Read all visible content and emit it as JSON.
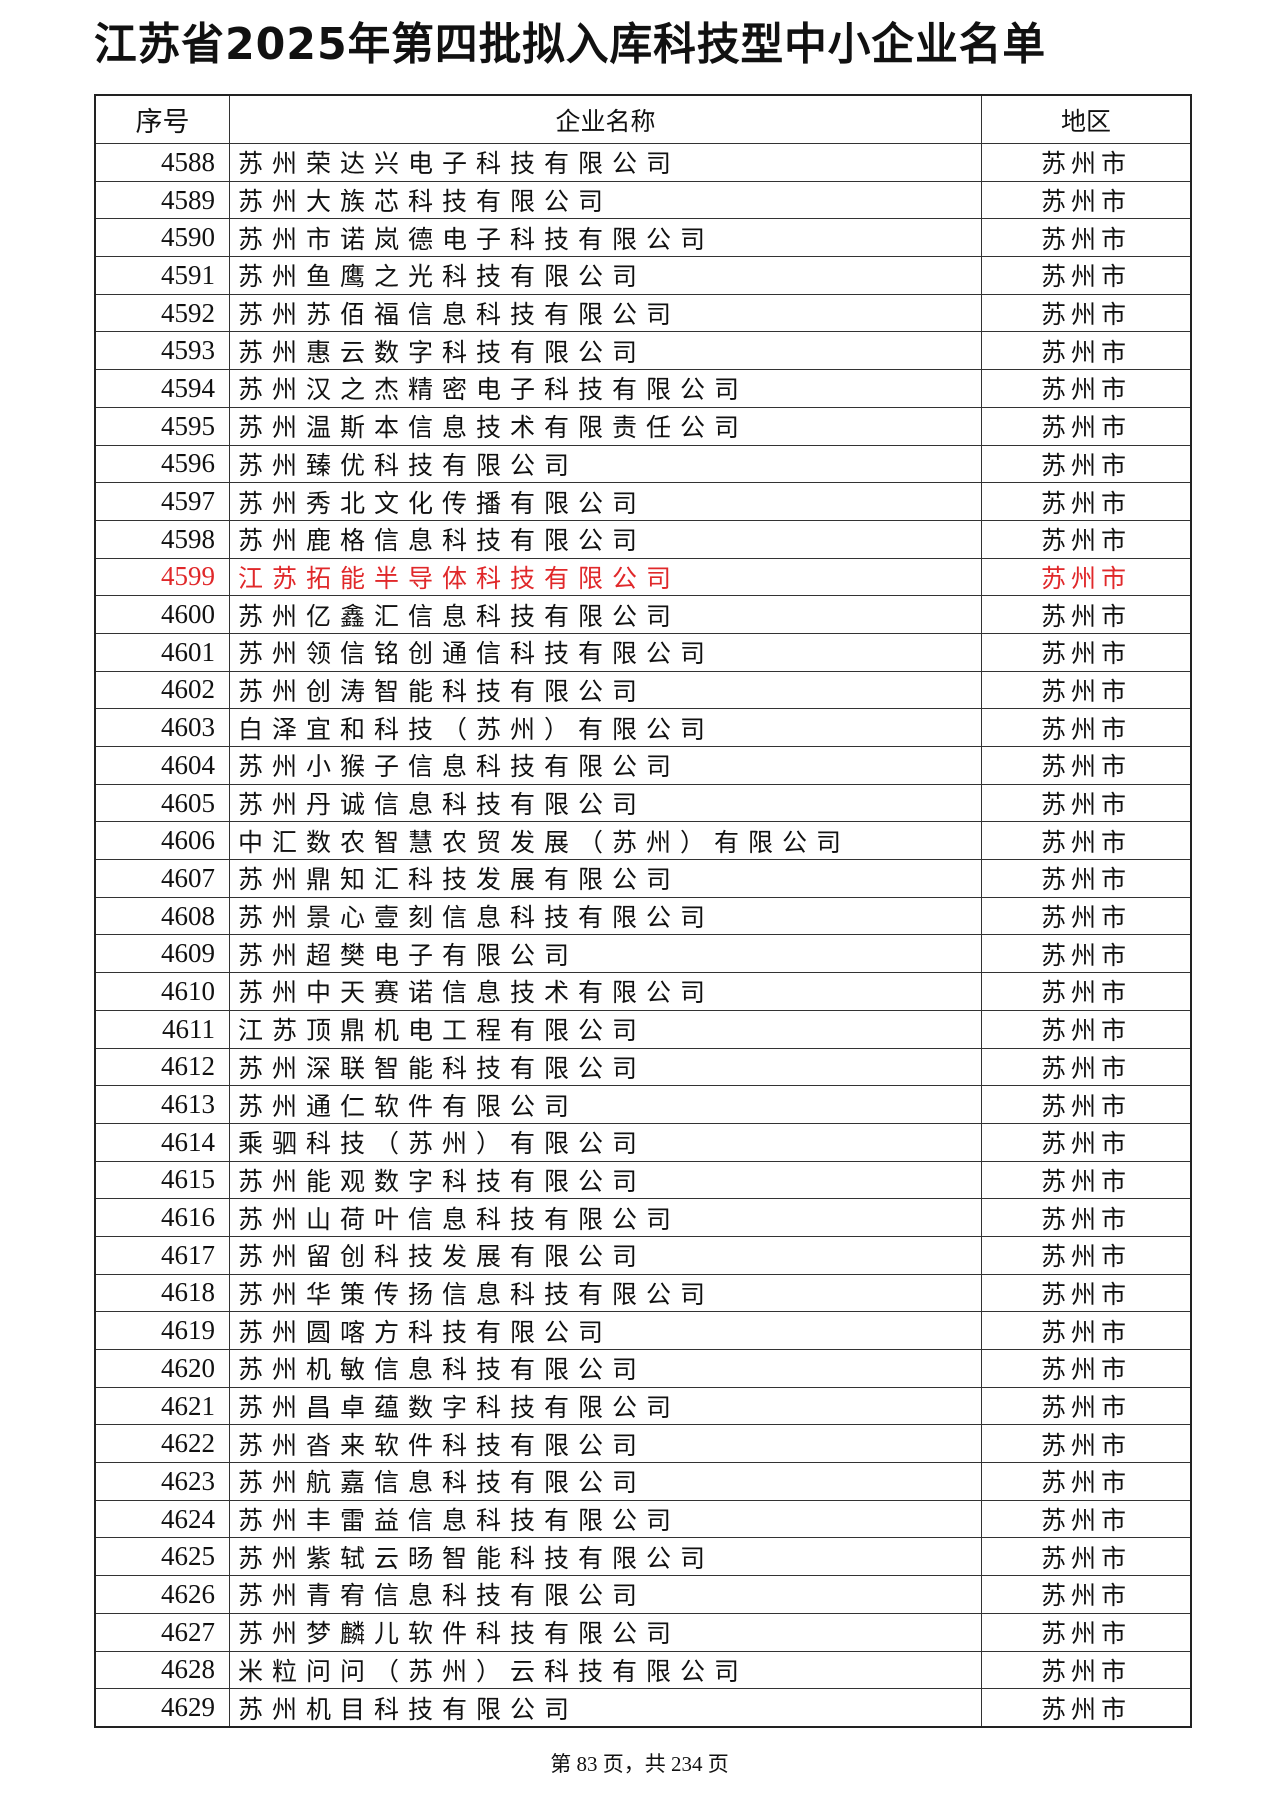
{
  "title": "江苏省2025年第四批拟入库科技型中小企业名单",
  "headers": {
    "index": "序号",
    "name": "企业名称",
    "region": "地区"
  },
  "highlight_color": "#e0282a",
  "rows": [
    {
      "index": "4588",
      "name": "苏州荣达兴电子科技有限公司",
      "region": "苏州市"
    },
    {
      "index": "4589",
      "name": "苏州大族芯科技有限公司",
      "region": "苏州市"
    },
    {
      "index": "4590",
      "name": "苏州市诺岚德电子科技有限公司",
      "region": "苏州市"
    },
    {
      "index": "4591",
      "name": "苏州鱼鹰之光科技有限公司",
      "region": "苏州市"
    },
    {
      "index": "4592",
      "name": "苏州苏佰福信息科技有限公司",
      "region": "苏州市"
    },
    {
      "index": "4593",
      "name": "苏州惠云数字科技有限公司",
      "region": "苏州市"
    },
    {
      "index": "4594",
      "name": "苏州汉之杰精密电子科技有限公司",
      "region": "苏州市"
    },
    {
      "index": "4595",
      "name": "苏州温斯本信息技术有限责任公司",
      "region": "苏州市"
    },
    {
      "index": "4596",
      "name": "苏州臻优科技有限公司",
      "region": "苏州市"
    },
    {
      "index": "4597",
      "name": "苏州秀北文化传播有限公司",
      "region": "苏州市"
    },
    {
      "index": "4598",
      "name": "苏州鹿格信息科技有限公司",
      "region": "苏州市"
    },
    {
      "index": "4599",
      "name": "江苏拓能半导体科技有限公司",
      "region": "苏州市",
      "highlighted": true
    },
    {
      "index": "4600",
      "name": "苏州亿鑫汇信息科技有限公司",
      "region": "苏州市"
    },
    {
      "index": "4601",
      "name": "苏州领信铭创通信科技有限公司",
      "region": "苏州市"
    },
    {
      "index": "4602",
      "name": "苏州创涛智能科技有限公司",
      "region": "苏州市"
    },
    {
      "index": "4603",
      "name": "白泽宜和科技（苏州）有限公司",
      "region": "苏州市"
    },
    {
      "index": "4604",
      "name": "苏州小猴子信息科技有限公司",
      "region": "苏州市"
    },
    {
      "index": "4605",
      "name": "苏州丹诚信息科技有限公司",
      "region": "苏州市"
    },
    {
      "index": "4606",
      "name": "中汇数农智慧农贸发展（苏州）有限公司",
      "region": "苏州市"
    },
    {
      "index": "4607",
      "name": "苏州鼎知汇科技发展有限公司",
      "region": "苏州市"
    },
    {
      "index": "4608",
      "name": "苏州景心壹刻信息科技有限公司",
      "region": "苏州市"
    },
    {
      "index": "4609",
      "name": "苏州超樊电子有限公司",
      "region": "苏州市"
    },
    {
      "index": "4610",
      "name": "苏州中天赛诺信息技术有限公司",
      "region": "苏州市"
    },
    {
      "index": "4611",
      "name": "江苏顶鼎机电工程有限公司",
      "region": "苏州市"
    },
    {
      "index": "4612",
      "name": "苏州深联智能科技有限公司",
      "region": "苏州市"
    },
    {
      "index": "4613",
      "name": "苏州通仁软件有限公司",
      "region": "苏州市"
    },
    {
      "index": "4614",
      "name": "乘驷科技（苏州）有限公司",
      "region": "苏州市"
    },
    {
      "index": "4615",
      "name": "苏州能观数字科技有限公司",
      "region": "苏州市"
    },
    {
      "index": "4616",
      "name": "苏州山荷叶信息科技有限公司",
      "region": "苏州市"
    },
    {
      "index": "4617",
      "name": "苏州留创科技发展有限公司",
      "region": "苏州市"
    },
    {
      "index": "4618",
      "name": "苏州华策传扬信息科技有限公司",
      "region": "苏州市"
    },
    {
      "index": "4619",
      "name": "苏州圆喀方科技有限公司",
      "region": "苏州市"
    },
    {
      "index": "4620",
      "name": "苏州机敏信息科技有限公司",
      "region": "苏州市"
    },
    {
      "index": "4621",
      "name": "苏州昌卓蕴数字科技有限公司",
      "region": "苏州市"
    },
    {
      "index": "4622",
      "name": "苏州沓来软件科技有限公司",
      "region": "苏州市"
    },
    {
      "index": "4623",
      "name": "苏州航嘉信息科技有限公司",
      "region": "苏州市"
    },
    {
      "index": "4624",
      "name": "苏州丰雷益信息科技有限公司",
      "region": "苏州市"
    },
    {
      "index": "4625",
      "name": "苏州紫轼云旸智能科技有限公司",
      "region": "苏州市"
    },
    {
      "index": "4626",
      "name": "苏州青宥信息科技有限公司",
      "region": "苏州市"
    },
    {
      "index": "4627",
      "name": "苏州梦麟儿软件科技有限公司",
      "region": "苏州市"
    },
    {
      "index": "4628",
      "name": "米粒问问（苏州）云科技有限公司",
      "region": "苏州市"
    },
    {
      "index": "4629",
      "name": "苏州机目科技有限公司",
      "region": "苏州市"
    }
  ],
  "footer": "第 83 页，共 234 页"
}
